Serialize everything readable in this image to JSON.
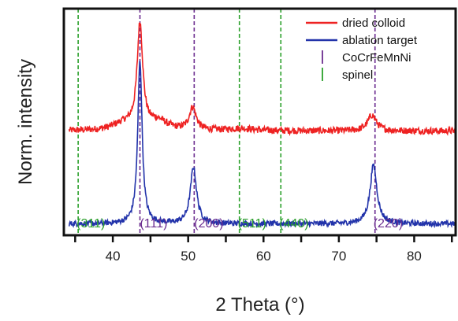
{
  "chart_data": {
    "type": "line",
    "title": "",
    "xlabel": "2 Theta (°)",
    "ylabel": "Norm. intensity",
    "xlim": [
      33.5,
      85.5
    ],
    "xticks": [
      35,
      40,
      45,
      50,
      55,
      60,
      65,
      70,
      75,
      80,
      85
    ],
    "xtick_labels": [
      {
        "x": 40,
        "label": "40"
      },
      {
        "x": 50,
        "label": "50"
      },
      {
        "x": 60,
        "label": "60"
      },
      {
        "x": 70,
        "label": "70"
      },
      {
        "x": 80,
        "label": "80"
      }
    ],
    "ylim": [
      0,
      1
    ],
    "grid": false,
    "legend_position": "top-right",
    "series": [
      {
        "name": "dried colloid",
        "color": "#ee2222",
        "baseline": 0.46,
        "noise": 0.015,
        "peaks": [
          {
            "x": 43.6,
            "height": 0.46,
            "width": 0.45
          },
          {
            "x": 50.6,
            "height": 0.1,
            "width": 0.55
          },
          {
            "x": 74.4,
            "height": 0.07,
            "width": 0.7
          }
        ],
        "features": [
          {
            "x": 41.5,
            "height": 0.03,
            "width": 1.8
          },
          {
            "x": 46.0,
            "height": 0.04,
            "width": 1.5
          },
          {
            "x": 57.0,
            "height": 0.01,
            "width": 2.0
          }
        ]
      },
      {
        "name": "ablation target",
        "color": "#2233aa",
        "baseline": 0.05,
        "noise": 0.012,
        "peaks": [
          {
            "x": 43.6,
            "height": 0.72,
            "width": 0.35
          },
          {
            "x": 50.7,
            "height": 0.25,
            "width": 0.5
          },
          {
            "x": 74.6,
            "height": 0.26,
            "width": 0.55
          }
        ],
        "features": []
      }
    ],
    "reference_lines": [
      {
        "name": "CoCrFeMnNi",
        "color": "#6b2c8f",
        "x": [
          43.6,
          50.8,
          74.8
        ]
      },
      {
        "name": "spinel",
        "color": "#2ba02b",
        "x": [
          35.4,
          56.8,
          62.3
        ]
      }
    ],
    "annotations": [
      {
        "text": "(311)",
        "x": 35.4,
        "color": "#2ba02b"
      },
      {
        "text": "(111)",
        "x": 43.8,
        "color": "#6b2c8f"
      },
      {
        "text": "(200)",
        "x": 51.0,
        "color": "#6b2c8f"
      },
      {
        "text": "(511)",
        "x": 56.8,
        "color": "#2ba02b"
      },
      {
        "text": "(440)",
        "x": 62.3,
        "color": "#2ba02b"
      },
      {
        "text": "(220)",
        "x": 74.8,
        "color": "#6b2c8f"
      }
    ]
  }
}
